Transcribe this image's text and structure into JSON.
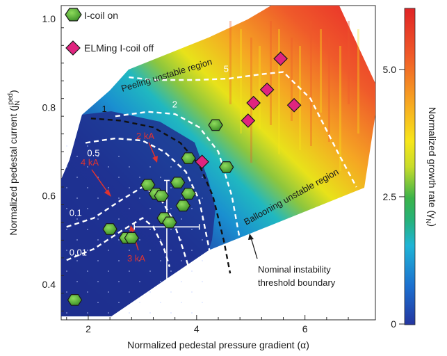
{
  "chart_data": {
    "type": "scatter",
    "xlabel": "Normalized pedestal pressure gradient (α)",
    "ylabel_main": "Normalized pedestal current (j",
    "ylabel_sub": "ped",
    "ylabel_subscript": "N",
    "ylabel_end": ")",
    "colorbar_label": "Normalized growth rate (γ",
    "colorbar_label_sub": "N",
    "colorbar_label_end": ")",
    "xlim": [
      1.5,
      7.3
    ],
    "ylim": [
      0.32,
      1.03
    ],
    "x_ticks": [
      {
        "value": 2,
        "label": "2"
      },
      {
        "value": 4,
        "label": "4"
      },
      {
        "value": 6,
        "label": "6"
      }
    ],
    "y_ticks": [
      {
        "value": 0.4,
        "label": "0.4"
      },
      {
        "value": 0.6,
        "label": "0.6"
      },
      {
        "value": 0.8,
        "label": "0.8"
      },
      {
        "value": 1.0,
        "label": "1.0"
      }
    ],
    "colorbar_range": [
      0,
      6.2
    ],
    "colorbar_ticks": [
      {
        "value": 0,
        "label": "0"
      },
      {
        "value": 2.5,
        "label": "2.5"
      },
      {
        "value": 5.0,
        "label": "5.0"
      }
    ],
    "series": [
      {
        "name": "I-coil on",
        "marker": "hexagon",
        "color": "#58b13a",
        "points": [
          {
            "x": 1.75,
            "y": 0.365
          },
          {
            "x": 2.4,
            "y": 0.525
          },
          {
            "x": 2.7,
            "y": 0.505
          },
          {
            "x": 2.8,
            "y": 0.505
          },
          {
            "x": 3.1,
            "y": 0.625
          },
          {
            "x": 3.25,
            "y": 0.605
          },
          {
            "x": 3.35,
            "y": 0.6
          },
          {
            "x": 3.4,
            "y": 0.55
          },
          {
            "x": 3.5,
            "y": 0.54
          },
          {
            "x": 3.65,
            "y": 0.63
          },
          {
            "x": 3.75,
            "y": 0.578
          },
          {
            "x": 3.85,
            "y": 0.605
          },
          {
            "x": 3.85,
            "y": 0.685
          },
          {
            "x": 4.35,
            "y": 0.76
          },
          {
            "x": 4.55,
            "y": 0.665
          }
        ]
      },
      {
        "name": "ELMing I-coil off",
        "marker": "diamond",
        "color": "#e0247f",
        "points": [
          {
            "x": 4.1,
            "y": 0.677
          },
          {
            "x": 4.95,
            "y": 0.77
          },
          {
            "x": 5.05,
            "y": 0.81
          },
          {
            "x": 5.3,
            "y": 0.84
          },
          {
            "x": 5.55,
            "y": 0.91
          },
          {
            "x": 5.8,
            "y": 0.805
          }
        ]
      }
    ],
    "error_bar": {
      "x": 3.45,
      "y": 0.53,
      "x_err": 0.6,
      "y_err_up": 0.105,
      "y_err_down": 0.125
    },
    "contours": [
      {
        "label": "5",
        "color": "#ffffff",
        "points": [
          [
            2.75,
            0.868
          ],
          [
            3.2,
            0.862
          ],
          [
            4.0,
            0.862
          ],
          [
            4.6,
            0.865
          ],
          [
            5.2,
            0.875
          ],
          [
            5.6,
            0.88
          ],
          [
            6.1,
            0.82
          ],
          [
            6.6,
            0.7
          ],
          [
            6.95,
            0.62
          ]
        ]
      },
      {
        "label": "2",
        "color": "#ffffff",
        "points": [
          [
            2.5,
            0.78
          ],
          [
            3.1,
            0.79
          ],
          [
            3.6,
            0.785
          ],
          [
            4.05,
            0.755
          ],
          [
            4.4,
            0.7
          ],
          [
            4.65,
            0.6
          ],
          [
            4.8,
            0.5
          ],
          [
            4.88,
            0.43
          ]
        ]
      },
      {
        "label": "1",
        "color": "#111111",
        "points": [
          [
            2.05,
            0.775
          ],
          [
            2.6,
            0.77
          ],
          [
            3.2,
            0.755
          ],
          [
            3.7,
            0.72
          ],
          [
            4.05,
            0.67
          ],
          [
            4.3,
            0.6
          ],
          [
            4.5,
            0.5
          ],
          [
            4.62,
            0.425
          ]
        ]
      },
      {
        "label": "0.5",
        "color": "#ffffff",
        "points": [
          [
            1.95,
            0.72
          ],
          [
            2.5,
            0.73
          ],
          [
            3.0,
            0.725
          ],
          [
            3.4,
            0.7
          ],
          [
            3.8,
            0.655
          ],
          [
            4.05,
            0.59
          ],
          [
            4.2,
            0.5
          ],
          [
            4.28,
            0.45
          ]
        ]
      },
      {
        "label": "0.1",
        "color": "#ffffff",
        "points": [
          [
            1.6,
            0.53
          ],
          [
            2.1,
            0.55
          ],
          [
            2.6,
            0.59
          ],
          [
            3.0,
            0.62
          ],
          [
            3.3,
            0.6
          ],
          [
            3.55,
            0.55
          ],
          [
            3.75,
            0.48
          ],
          [
            3.85,
            0.44
          ]
        ]
      },
      {
        "label": "0.01",
        "color": "#ffffff",
        "points": [
          [
            1.6,
            0.455
          ],
          [
            2.1,
            0.48
          ],
          [
            2.6,
            0.52
          ],
          [
            3.0,
            0.55
          ],
          [
            3.2,
            0.53
          ],
          [
            3.4,
            0.48
          ],
          [
            3.5,
            0.44
          ]
        ]
      }
    ],
    "annotations": {
      "peeling": "Peeling unstable region",
      "ballooning": "Ballooning unstable region",
      "coil_4ka": "4 kA",
      "coil_2ka": "2 kA",
      "coil_3ka": "3 kA",
      "boundary_line1": "Nominal instability",
      "boundary_line2": "threshold boundary"
    }
  }
}
